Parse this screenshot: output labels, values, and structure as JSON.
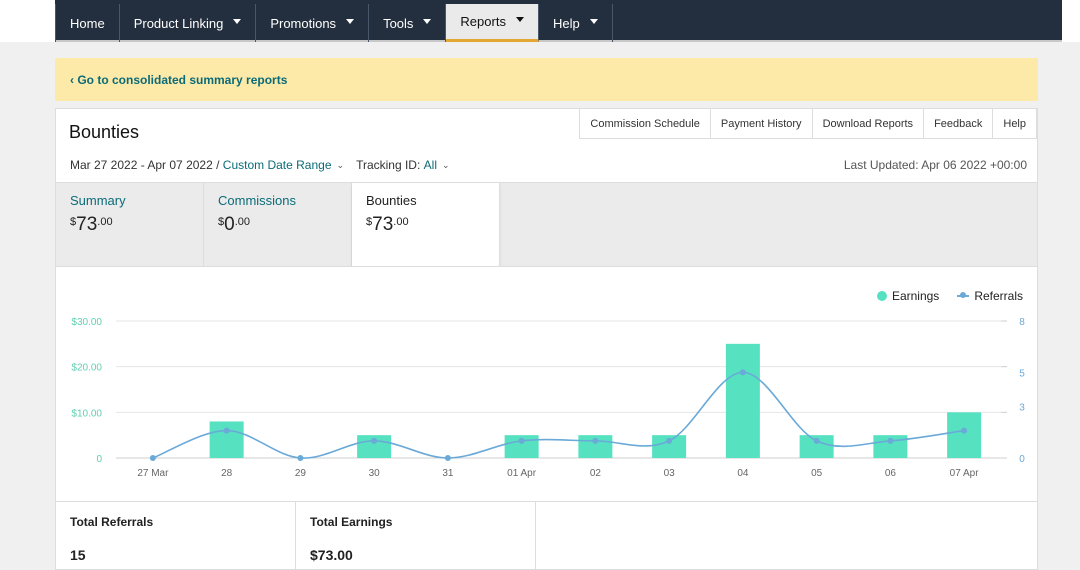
{
  "nav": {
    "items": [
      {
        "label": "Home",
        "caret": false
      },
      {
        "label": "Product Linking",
        "caret": true
      },
      {
        "label": "Promotions",
        "caret": true
      },
      {
        "label": "Tools",
        "caret": true
      },
      {
        "label": "Reports",
        "caret": true,
        "active": true
      },
      {
        "label": "Help",
        "caret": true
      }
    ]
  },
  "banner": {
    "link": "‹ Go to consolidated summary reports"
  },
  "report": {
    "title": "Bounties",
    "tabs": [
      "Commission Schedule",
      "Payment History",
      "Download Reports",
      "Feedback",
      "Help"
    ],
    "date_range": "Mar 27 2022 - Apr 07 2022 /",
    "date_range_link": "Custom Date Range",
    "tracking_label": "Tracking ID:",
    "tracking_value": "All",
    "last_updated": "Last Updated: Apr 06 2022 +00:00"
  },
  "cards": [
    {
      "label": "Summary",
      "currency": "$",
      "whole": "73",
      "cents": ".00"
    },
    {
      "label": "Commissions",
      "currency": "$",
      "whole": "0",
      "cents": ".00"
    },
    {
      "label": "Bounties",
      "currency": "$",
      "whole": "73",
      "cents": ".00",
      "active": true
    }
  ],
  "legend": {
    "earnings": "Earnings",
    "referrals": "Referrals"
  },
  "colors": {
    "earnings": "#56e1c0",
    "referrals": "#6aa9d8",
    "nav_bg": "#232f3e",
    "banner_bg": "#fde9a8",
    "link": "#0b6b77"
  },
  "chart_data": {
    "type": "bar",
    "categories": [
      "27 Mar",
      "28",
      "29",
      "30",
      "31",
      "01 Apr",
      "02",
      "03",
      "04",
      "05",
      "06",
      "07 Apr"
    ],
    "series": [
      {
        "name": "Earnings",
        "type": "bar",
        "axis": "left",
        "values": [
          0,
          8,
          0,
          5,
          0,
          5,
          5,
          5,
          25,
          5,
          5,
          10
        ]
      },
      {
        "name": "Referrals",
        "type": "line",
        "axis": "right",
        "values": [
          0,
          1.6,
          0,
          1,
          0,
          1,
          1,
          1,
          5,
          1,
          1,
          1.6
        ]
      }
    ],
    "y_left": {
      "min": 0,
      "max": 30,
      "ticks": [
        0,
        10,
        20,
        30
      ],
      "tick_labels": [
        "0",
        "$10.00",
        "$20.00",
        "$30.00"
      ]
    },
    "y_right": {
      "min": 0,
      "max": 8,
      "ticks": [
        0,
        3,
        5,
        8
      ],
      "tick_labels": [
        "0",
        "3",
        "5",
        "8"
      ]
    },
    "grid": true,
    "legend_position": "top-right"
  },
  "totals": [
    {
      "label": "Total Referrals",
      "value": "15"
    },
    {
      "label": "Total Earnings",
      "value": "$73.00"
    }
  ]
}
